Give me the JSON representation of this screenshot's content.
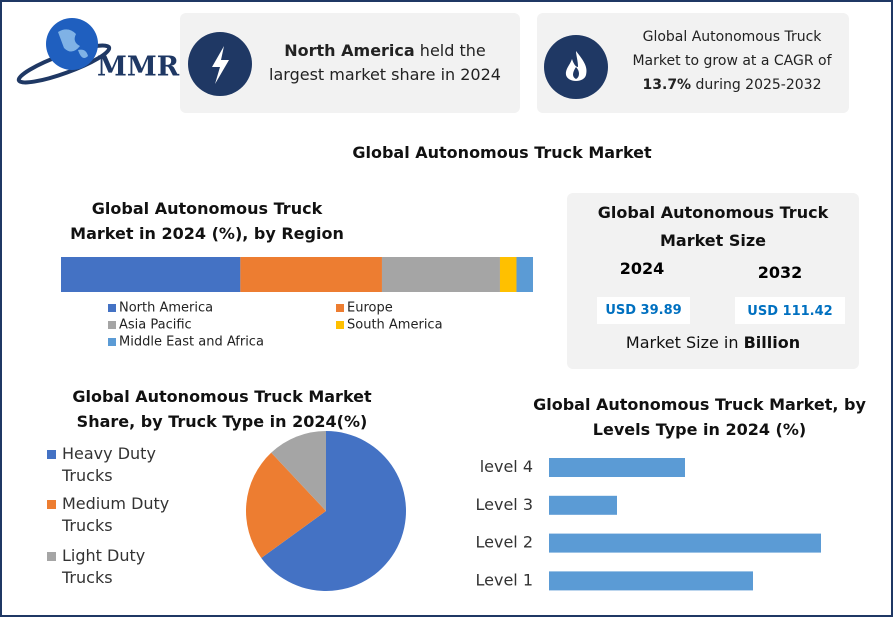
{
  "logo": "MMR",
  "highlights": [
    {
      "bold": "North America",
      "text": "held the largest market share in 2024"
    },
    {
      "text_before": "Global Autonomous Truck Market to grow at a CAGR of",
      "bold": "13.7%",
      "text_after": "during 2025-2032"
    }
  ],
  "title": "Global Autonomous Truck Market",
  "market_size": {
    "title": "Global Autonomous Truck Market Size",
    "years": [
      "2024",
      "2032"
    ],
    "values": [
      "USD 39.89",
      "USD 111.42"
    ],
    "footer": "Market Size in",
    "unit": "Billion"
  },
  "chart_data": [
    {
      "type": "stacked_bar",
      "title": "Global Autonomous Truck Market in 2024 (%), by Region",
      "series": [
        {
          "name": "North America",
          "color": "#4472c4",
          "values": [
            38
          ]
        },
        {
          "name": "Europe",
          "color": "#ed7d31",
          "values": [
            30
          ]
        },
        {
          "name": "Asia Pacific",
          "color": "#a5a5a5",
          "values": [
            25
          ]
        },
        {
          "name": "South America",
          "color": "#ffc000",
          "values": [
            3.5
          ]
        },
        {
          "name": "Middle East and Africa",
          "color": "#5b9bd5",
          "values": [
            3.5
          ]
        }
      ]
    },
    {
      "type": "pie",
      "title": "Global Autonomous Truck Market Share, by Truck Type in 2024(%)",
      "categories": [
        "Heavy Duty Trucks",
        "Medium Duty Trucks",
        "Light Duty Trucks"
      ],
      "values": [
        65,
        23,
        12
      ],
      "colors": [
        "#4472c4",
        "#ed7d31",
        "#a5a5a5"
      ]
    },
    {
      "type": "bar",
      "orientation": "horizontal",
      "title": "Global Autonomous Truck Market, by Levels Type in 2024 (%)",
      "categories": [
        "level 4",
        "Level 3",
        "Level 2",
        "Level 1"
      ],
      "values": [
        20,
        10,
        40,
        30
      ],
      "color": "#5b9bd5"
    }
  ]
}
